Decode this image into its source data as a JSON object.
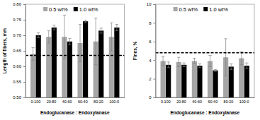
{
  "chart_data": [
    {
      "type": "bar",
      "y_label": "Length of fibers, mm",
      "x_label": "Endoglucanase : Endoxylanase",
      "categories": [
        "0:100",
        "20:80",
        "40:60",
        "60:40",
        "80:20",
        "100:0"
      ],
      "series": [
        {
          "name": "0.5 wt%",
          "color": "#a6a6a6",
          "values": [
            0.64,
            0.695,
            0.695,
            0.675,
            0.68,
            0.695
          ],
          "errors": [
            0.02,
            0.02,
            0.07,
            0.06,
            0.075,
            0.045
          ]
        },
        {
          "name": "1.0 wt%",
          "color": "#000000",
          "values": [
            0.7,
            0.725,
            0.68,
            0.745,
            0.715,
            0.725
          ],
          "errors": [
            0.008,
            0.008,
            0.01,
            0.004,
            0.008,
            0.01
          ]
        }
      ],
      "reference": 0.635,
      "ylim": [
        0.5,
        0.8
      ],
      "yticks": [
        {
          "value": 0.5,
          "label": "0.50"
        },
        {
          "value": 0.55,
          "label": "0.55"
        },
        {
          "value": 0.6,
          "label": "0.60"
        },
        {
          "value": 0.65,
          "label": "0.65"
        },
        {
          "value": 0.7,
          "label": "0.70"
        },
        {
          "value": 0.75,
          "label": "0.75"
        },
        {
          "value": 0.8,
          "label": "0.80"
        }
      ],
      "legend": "top",
      "grid": false
    },
    {
      "type": "bar",
      "y_label": "Fines, %",
      "x_label": "Endoglucanase : Endoxylanase",
      "categories": [
        "0:100",
        "20:80",
        "40:60",
        "60:40",
        "80:20",
        "100:0"
      ],
      "series": [
        {
          "name": "0.5 wt%",
          "color": "#a6a6a6",
          "values": [
            3.9,
            3.8,
            3.9,
            3.9,
            4.3,
            4.2
          ],
          "errors": [
            0.5,
            0.5,
            0.3,
            0.6,
            2.0,
            0.7
          ]
        },
        {
          "name": "1.0 wt%",
          "color": "#000000",
          "values": [
            3.5,
            3.5,
            3.4,
            2.9,
            3.3,
            3.4
          ],
          "errors": [
            0.3,
            0.2,
            0.2,
            0.1,
            0.3,
            0.3
          ]
        }
      ],
      "reference": 4.8,
      "ylim": [
        0,
        10
      ],
      "yticks": [
        0,
        2,
        4,
        6,
        8,
        10
      ],
      "legend": "top",
      "grid": false
    }
  ]
}
